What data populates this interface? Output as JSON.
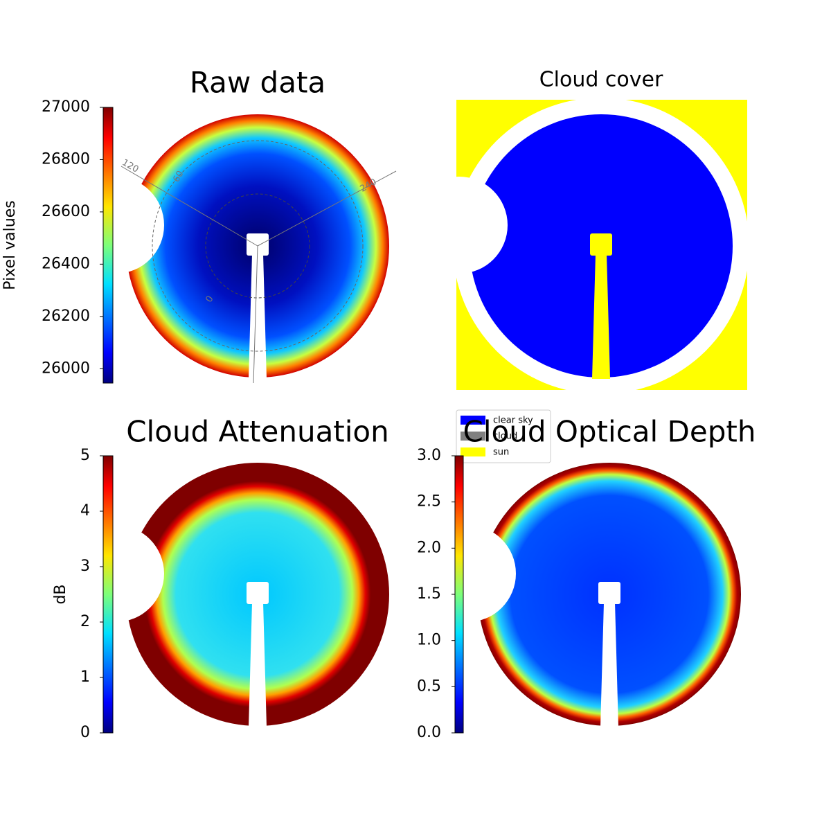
{
  "chart_data": [
    {
      "type": "heatmap",
      "title": "Raw data",
      "colorbar": {
        "label": "Pixel values",
        "colormap": "jet",
        "lim": [
          25945,
          27000
        ],
        "ticks": [
          26000,
          26200,
          26400,
          26600,
          26800,
          27000
        ]
      },
      "annotations": [
        "120",
        "60",
        "240",
        "0"
      ]
    },
    {
      "type": "classification",
      "title": "Cloud cover",
      "series": [
        {
          "name": "clear sky",
          "color": "#0000ff"
        },
        {
          "name": "cloud",
          "color": "#808080"
        },
        {
          "name": "sun",
          "color": "#ffff00"
        }
      ]
    },
    {
      "type": "heatmap",
      "title": "Cloud Attenuation",
      "colorbar": {
        "label": "dB",
        "colormap": "jet",
        "lim": [
          0,
          5
        ],
        "ticks": [
          0,
          1,
          2,
          3,
          4,
          5
        ]
      }
    },
    {
      "type": "heatmap",
      "title": "Cloud Optical Depth",
      "colorbar": {
        "colormap": "jet",
        "lim": [
          0,
          3
        ],
        "ticks": [
          {
            "value": 0,
            "label": "0.0"
          },
          {
            "value": 0.5,
            "label": "0.5"
          },
          {
            "value": 1,
            "label": "1.0"
          },
          {
            "value": 1.5,
            "label": "1.5"
          },
          {
            "value": 2,
            "label": "2.0"
          },
          {
            "value": 2.5,
            "label": "2.5"
          },
          {
            "value": 3,
            "label": "3.0"
          }
        ]
      }
    }
  ]
}
